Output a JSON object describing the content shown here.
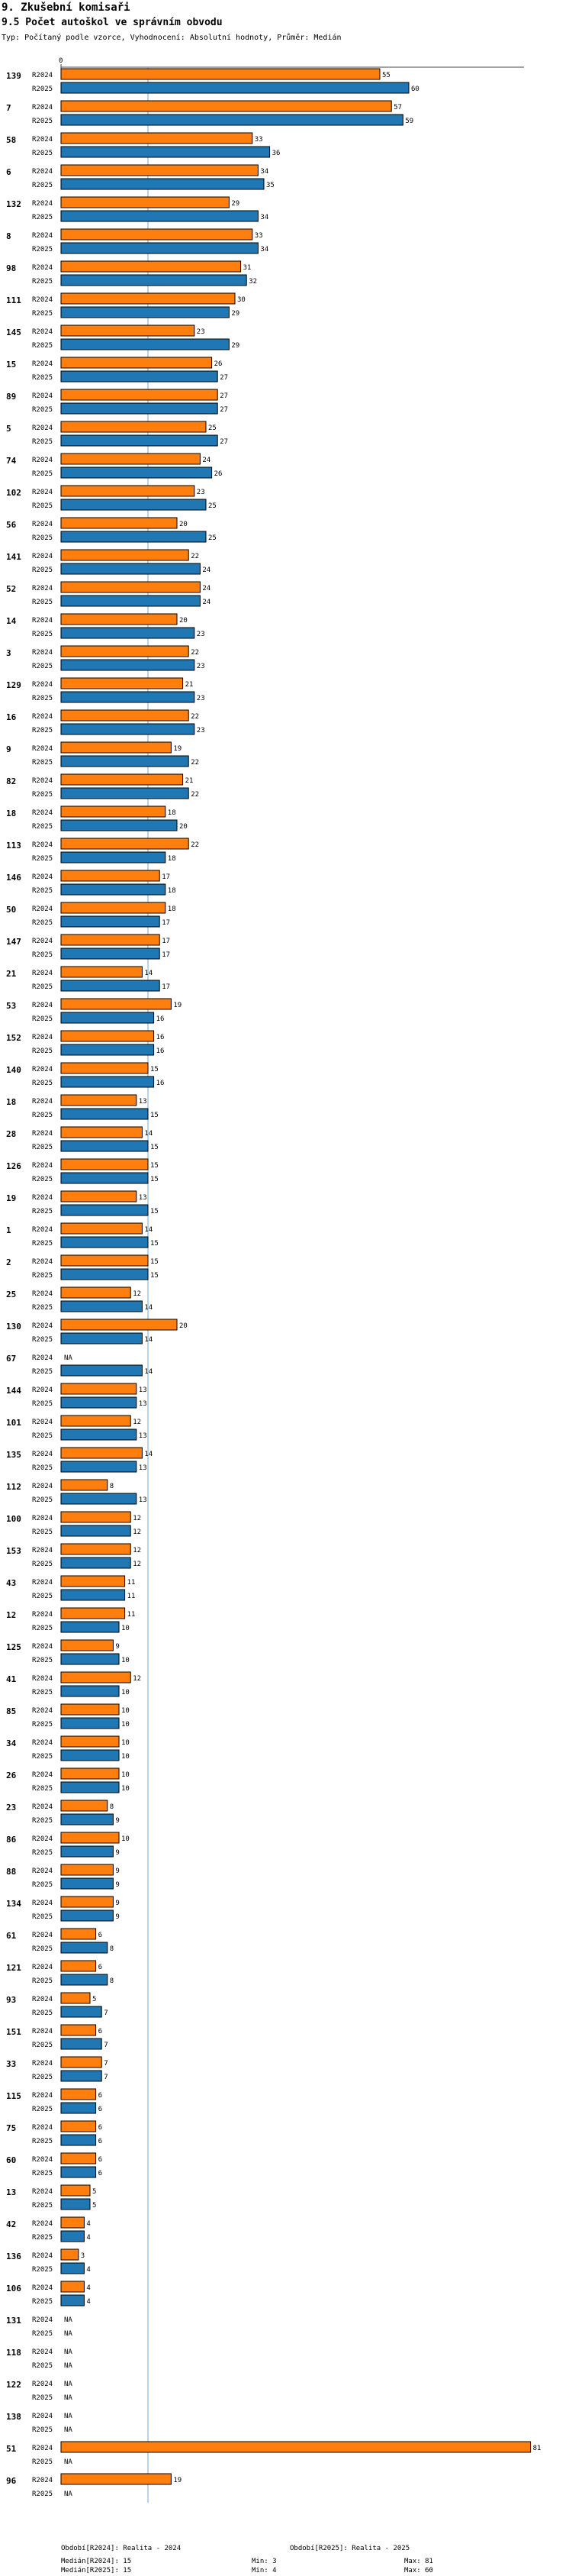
{
  "header": {
    "section": "9. Zkušební komisaři",
    "title": "9.5 Počet autoškol ve správním obvodu",
    "subtitle": "Typ: Počítaný podle vzorce, Vyhodnocení: Absolutní hodnoty, Průměr: Medián"
  },
  "colors": {
    "r2024": "#ff7f0e",
    "r2025": "#1f77b4",
    "median_line": "#6fa8dc"
  },
  "chart_data": {
    "type": "bar",
    "orientation": "horizontal",
    "title": "9.5 Počet autoškol ve správním obvodu",
    "x_axis_tick": "0",
    "xlim": [
      0,
      82
    ],
    "median_marker": 15,
    "series_labels": [
      "R2024",
      "R2025"
    ],
    "categories": [
      {
        "name": "139",
        "r2024": 55,
        "r2025": 60
      },
      {
        "name": "7",
        "r2024": 57,
        "r2025": 59
      },
      {
        "name": "58",
        "r2024": 33,
        "r2025": 36
      },
      {
        "name": "6",
        "r2024": 34,
        "r2025": 35
      },
      {
        "name": "132",
        "r2024": 29,
        "r2025": 34
      },
      {
        "name": "8",
        "r2024": 33,
        "r2025": 34
      },
      {
        "name": "98",
        "r2024": 31,
        "r2025": 32
      },
      {
        "name": "111",
        "r2024": 30,
        "r2025": 29
      },
      {
        "name": "145",
        "r2024": 23,
        "r2025": 29
      },
      {
        "name": "15",
        "r2024": 26,
        "r2025": 27
      },
      {
        "name": "89",
        "r2024": 27,
        "r2025": 27
      },
      {
        "name": "5",
        "r2024": 25,
        "r2025": 27
      },
      {
        "name": "74",
        "r2024": 24,
        "r2025": 26
      },
      {
        "name": "102",
        "r2024": 23,
        "r2025": 25
      },
      {
        "name": "56",
        "r2024": 20,
        "r2025": 25
      },
      {
        "name": "141",
        "r2024": 22,
        "r2025": 24
      },
      {
        "name": "52",
        "r2024": 24,
        "r2025": 24
      },
      {
        "name": "14",
        "r2024": 20,
        "r2025": 23
      },
      {
        "name": "3",
        "r2024": 22,
        "r2025": 23
      },
      {
        "name": "129",
        "r2024": 21,
        "r2025": 23
      },
      {
        "name": "16",
        "r2024": 22,
        "r2025": 23
      },
      {
        "name": "9",
        "r2024": 19,
        "r2025": 22
      },
      {
        "name": "82",
        "r2024": 21,
        "r2025": 22
      },
      {
        "name": "18",
        "r2024": 18,
        "r2025": 20
      },
      {
        "name": "113",
        "r2024": 22,
        "r2025": 18
      },
      {
        "name": "146",
        "r2024": 17,
        "r2025": 18
      },
      {
        "name": "50",
        "r2024": 18,
        "r2025": 17
      },
      {
        "name": "147",
        "r2024": 17,
        "r2025": 17
      },
      {
        "name": "21",
        "r2024": 14,
        "r2025": 17
      },
      {
        "name": "53",
        "r2024": 19,
        "r2025": 16
      },
      {
        "name": "152",
        "r2024": 16,
        "r2025": 16
      },
      {
        "name": "140",
        "r2024": 15,
        "r2025": 16
      },
      {
        "name": "18",
        "r2024": 13,
        "r2025": 15
      },
      {
        "name": "28",
        "r2024": 14,
        "r2025": 15
      },
      {
        "name": "126",
        "r2024": 15,
        "r2025": 15
      },
      {
        "name": "19",
        "r2024": 13,
        "r2025": 15
      },
      {
        "name": "1",
        "r2024": 14,
        "r2025": 15
      },
      {
        "name": "2",
        "r2024": 15,
        "r2025": 15
      },
      {
        "name": "25",
        "r2024": 12,
        "r2025": 14
      },
      {
        "name": "130",
        "r2024": 20,
        "r2025": 14
      },
      {
        "name": "67",
        "r2024": null,
        "r2025": 14
      },
      {
        "name": "144",
        "r2024": 13,
        "r2025": 13
      },
      {
        "name": "101",
        "r2024": 12,
        "r2025": 13
      },
      {
        "name": "135",
        "r2024": 14,
        "r2025": 13
      },
      {
        "name": "112",
        "r2024": 8,
        "r2025": 13
      },
      {
        "name": "100",
        "r2024": 12,
        "r2025": 12
      },
      {
        "name": "153",
        "r2024": 12,
        "r2025": 12
      },
      {
        "name": "43",
        "r2024": 11,
        "r2025": 11
      },
      {
        "name": "12",
        "r2024": 11,
        "r2025": 10
      },
      {
        "name": "125",
        "r2024": 9,
        "r2025": 10
      },
      {
        "name": "41",
        "r2024": 12,
        "r2025": 10
      },
      {
        "name": "85",
        "r2024": 10,
        "r2025": 10
      },
      {
        "name": "34",
        "r2024": 10,
        "r2025": 10
      },
      {
        "name": "26",
        "r2024": 10,
        "r2025": 10
      },
      {
        "name": "23",
        "r2024": 8,
        "r2025": 9
      },
      {
        "name": "86",
        "r2024": 10,
        "r2025": 9
      },
      {
        "name": "88",
        "r2024": 9,
        "r2025": 9
      },
      {
        "name": "134",
        "r2024": 9,
        "r2025": 9
      },
      {
        "name": "61",
        "r2024": 6,
        "r2025": 8
      },
      {
        "name": "121",
        "r2024": 6,
        "r2025": 8
      },
      {
        "name": "93",
        "r2024": 5,
        "r2025": 7
      },
      {
        "name": "151",
        "r2024": 6,
        "r2025": 7
      },
      {
        "name": "33",
        "r2024": 7,
        "r2025": 7
      },
      {
        "name": "115",
        "r2024": 6,
        "r2025": 6
      },
      {
        "name": "75",
        "r2024": 6,
        "r2025": 6
      },
      {
        "name": "60",
        "r2024": 6,
        "r2025": 6
      },
      {
        "name": "13",
        "r2024": 5,
        "r2025": 5
      },
      {
        "name": "42",
        "r2024": 4,
        "r2025": 4
      },
      {
        "name": "136",
        "r2024": 3,
        "r2025": 4
      },
      {
        "name": "106",
        "r2024": 4,
        "r2025": 4
      },
      {
        "name": "131",
        "r2024": null,
        "r2025": null
      },
      {
        "name": "118",
        "r2024": null,
        "r2025": null
      },
      {
        "name": "122",
        "r2024": null,
        "r2025": null
      },
      {
        "name": "138",
        "r2024": null,
        "r2025": null
      },
      {
        "name": "51",
        "r2024": 81,
        "r2025": null
      },
      {
        "name": "96",
        "r2024": 19,
        "r2025": null
      }
    ],
    "na_label": "NA"
  },
  "legend": {
    "period_2024": "Období[R2024]: Realita - 2024",
    "period_2025": "Období[R2025]: Realita - 2025",
    "median_2024": "Medián[R2024]: 15",
    "median_2025": "Medián[R2025]: 15",
    "min_2024": "Min: 3",
    "min_2025": "Min: 4",
    "max_2024": "Max: 81",
    "max_2025": "Max: 60"
  }
}
